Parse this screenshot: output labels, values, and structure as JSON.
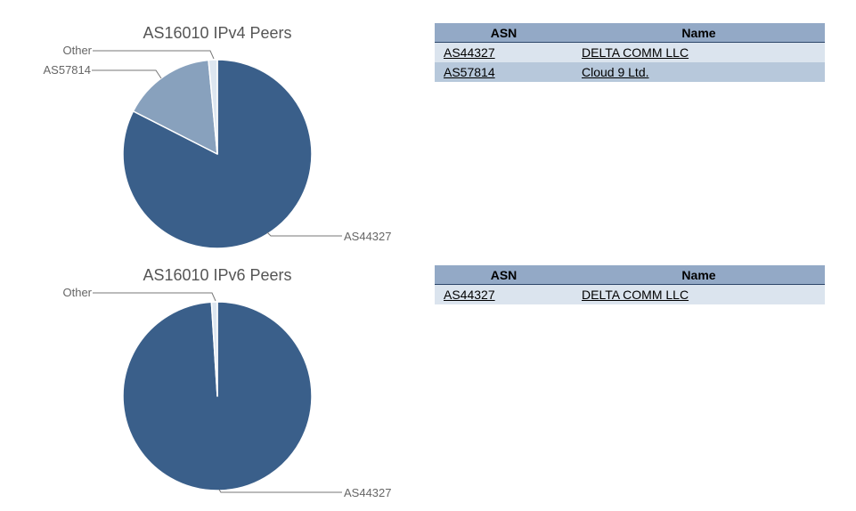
{
  "chart_data": [
    {
      "type": "pie",
      "title": "AS16010 IPv4 Peers",
      "slices": [
        {
          "label": "AS44327",
          "value": 82.5,
          "color": "#3a5f8a"
        },
        {
          "label": "AS57814",
          "value": 16.0,
          "color": "#88a1bd"
        },
        {
          "label": "Other",
          "value": 1.5,
          "color": "#dde6f0"
        }
      ]
    },
    {
      "type": "pie",
      "title": "AS16010 IPv6 Peers",
      "slices": [
        {
          "label": "AS44327",
          "value": 99,
          "color": "#3a5f8a"
        },
        {
          "label": "Other",
          "value": 1,
          "color": "#dde6f0"
        }
      ]
    }
  ],
  "tables": [
    {
      "headers": {
        "asn": "ASN",
        "name": "Name"
      },
      "rows": [
        {
          "asn": "AS44327",
          "name": "DELTA COMM LLC"
        },
        {
          "asn": "AS57814",
          "name": "Cloud 9 Ltd."
        }
      ]
    },
    {
      "headers": {
        "asn": "ASN",
        "name": "Name"
      },
      "rows": [
        {
          "asn": "AS44327",
          "name": "DELTA COMM LLC"
        }
      ]
    }
  ]
}
